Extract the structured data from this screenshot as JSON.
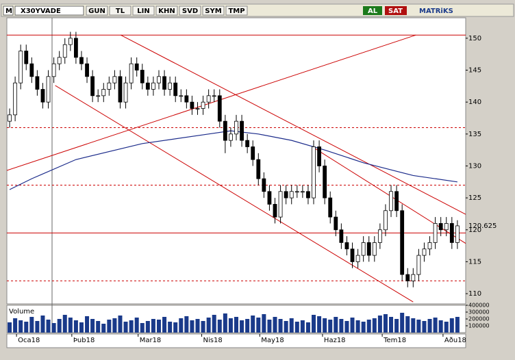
{
  "toolbar": {
    "logo": "M",
    "symbol": "X30YVADE",
    "buttons": [
      "GUN",
      "TL",
      "LIN",
      "KHN",
      "SVD",
      "SYM",
      "TMP"
    ],
    "buy": "AL",
    "sell": "SAT",
    "brand": "MATRiKS"
  },
  "chart_data": {
    "type": "candlestick",
    "last_label": "120.625",
    "volume_label": "Volume",
    "ylim": [
      108.4,
      153.2
    ],
    "yticks": [
      110,
      115,
      120,
      125,
      130,
      135,
      140,
      145,
      150
    ],
    "xlim": [
      -0.5,
      82.5
    ],
    "xticks": [
      {
        "value": 1.25,
        "label": "Oca18"
      },
      {
        "value": 11.25,
        "label": "Þub18"
      },
      {
        "value": 23.25,
        "label": "Mar18"
      },
      {
        "value": 34.75,
        "label": "Nis18"
      },
      {
        "value": 45.25,
        "label": "May18"
      },
      {
        "value": 56.6,
        "label": "Haz18"
      },
      {
        "value": 67.4,
        "label": "Tem18"
      },
      {
        "value": 78.4,
        "label": "Aðu18"
      }
    ],
    "open": [
      137,
      138,
      143,
      148,
      146,
      144,
      142,
      140,
      144,
      146,
      147,
      149,
      150,
      147,
      146,
      144,
      141,
      141,
      142,
      143,
      144,
      140,
      143,
      146,
      145,
      143,
      142,
      143,
      144,
      142,
      143,
      141,
      141,
      140,
      139,
      139,
      140,
      141,
      141,
      137,
      134,
      135,
      137,
      134,
      133,
      131,
      128,
      126,
      124,
      122,
      126,
      125,
      126,
      126,
      126,
      125,
      133,
      130,
      125,
      122,
      120,
      118,
      117,
      115,
      116,
      118,
      116,
      118,
      120,
      123,
      126,
      123,
      113,
      112,
      113,
      116,
      117,
      118,
      121,
      120,
      121,
      118
    ],
    "high": [
      139,
      144,
      149,
      149,
      147,
      145,
      143,
      145,
      147,
      148,
      150,
      151,
      151,
      148,
      147,
      145,
      142,
      143,
      144,
      145,
      145,
      144,
      147,
      147,
      146,
      144,
      144,
      145,
      145,
      144,
      144,
      142,
      142,
      141,
      140,
      141,
      142,
      142,
      142,
      138,
      136,
      138,
      138,
      135,
      134,
      132,
      129,
      127,
      125,
      127,
      127,
      127,
      127,
      127,
      127,
      134,
      134,
      131,
      126,
      123,
      121,
      119,
      118,
      117,
      119,
      119,
      119,
      121,
      124,
      127,
      127,
      124,
      114,
      114,
      117,
      118,
      119,
      122,
      122,
      122,
      122,
      121.5
    ],
    "low": [
      136,
      137,
      142,
      145,
      143,
      141,
      139,
      139,
      143,
      145,
      146,
      148,
      146,
      145,
      143,
      140,
      140,
      140,
      141,
      142,
      139,
      139,
      142,
      144,
      142,
      141,
      141,
      142,
      141,
      141,
      140,
      140,
      139,
      138,
      138,
      138,
      139,
      140,
      136,
      132,
      133,
      134,
      133,
      132,
      130,
      127,
      125,
      123,
      121,
      121,
      124,
      124,
      125,
      125,
      124,
      124,
      129,
      124,
      121,
      119,
      117,
      116,
      114,
      114,
      115,
      115,
      115,
      117,
      119,
      122,
      122,
      112,
      111,
      111,
      112,
      115,
      116,
      117,
      119,
      119,
      117,
      117
    ],
    "close": [
      138,
      143,
      148,
      146,
      144,
      142,
      140,
      144,
      146,
      147,
      149,
      150,
      147,
      146,
      144,
      141,
      141,
      142,
      143,
      144,
      140,
      143,
      146,
      145,
      143,
      142,
      143,
      144,
      142,
      143,
      141,
      141,
      140,
      139,
      139,
      140,
      141,
      141,
      137,
      134,
      135,
      137,
      134,
      133,
      131,
      128,
      126,
      124,
      122,
      126,
      125,
      126,
      126,
      126,
      125,
      133,
      130,
      125,
      122,
      120,
      118,
      117,
      115,
      116,
      118,
      116,
      118,
      120,
      123,
      126,
      123,
      113,
      112,
      113,
      116,
      117,
      118,
      121,
      120,
      121,
      118,
      120.625
    ],
    "volume": [
      150000,
      210000,
      180000,
      160000,
      230000,
      170000,
      250000,
      190000,
      140000,
      200000,
      260000,
      220000,
      180000,
      150000,
      240000,
      200000,
      170000,
      130000,
      190000,
      210000,
      250000,
      160000,
      180000,
      220000,
      140000,
      170000,
      200000,
      190000,
      230000,
      160000,
      150000,
      210000,
      240000,
      180000,
      200000,
      170000,
      220000,
      260000,
      190000,
      280000,
      210000,
      230000,
      180000,
      200000,
      250000,
      220000,
      270000,
      190000,
      230000,
      200000,
      170000,
      210000,
      160000,
      180000,
      150000,
      260000,
      240000,
      210000,
      190000,
      230000,
      200000,
      170000,
      220000,
      180000,
      160000,
      190000,
      210000,
      250000,
      270000,
      230000,
      200000,
      290000,
      240000,
      210000,
      190000,
      170000,
      200000,
      220000,
      180000,
      160000,
      210000,
      230000
    ],
    "vlim": [
      0,
      400000
    ],
    "vticks": [
      100000,
      200000,
      300000,
      400000
    ],
    "ma": {
      "name": "MA",
      "color": "#1a2a8a",
      "x": [
        0,
        4,
        12,
        24,
        36,
        40,
        45,
        51,
        57,
        64,
        73,
        81
      ],
      "values": [
        126.3,
        128,
        131,
        133.5,
        135,
        135.5,
        135,
        134,
        132.5,
        130.5,
        128.5,
        127.5
      ]
    },
    "hlines": [
      {
        "value": 150.5,
        "dashed": false
      },
      {
        "value": 136,
        "dashed": true
      },
      {
        "value": 127,
        "dashed": true
      },
      {
        "value": 119.5,
        "dashed": false
      },
      {
        "value": 112,
        "dashed": true
      }
    ],
    "trendlines": [
      {
        "x": [
          -0.5,
          73.5
        ],
        "y": [
          129.3,
          150.5
        ]
      },
      {
        "x": [
          20.1,
          83
        ],
        "y": [
          150.5,
          122.2
        ]
      },
      {
        "x": [
          8.25,
          73
        ],
        "y": [
          142.6,
          108.7
        ]
      },
      {
        "x": [
          55.1,
          83
        ],
        "y": [
          132.8,
          117.6
        ]
      }
    ],
    "line_color": "#cc0000",
    "up_color": "#ffffff",
    "down_color": "#000000",
    "volume_color": "#1a3a8a"
  }
}
